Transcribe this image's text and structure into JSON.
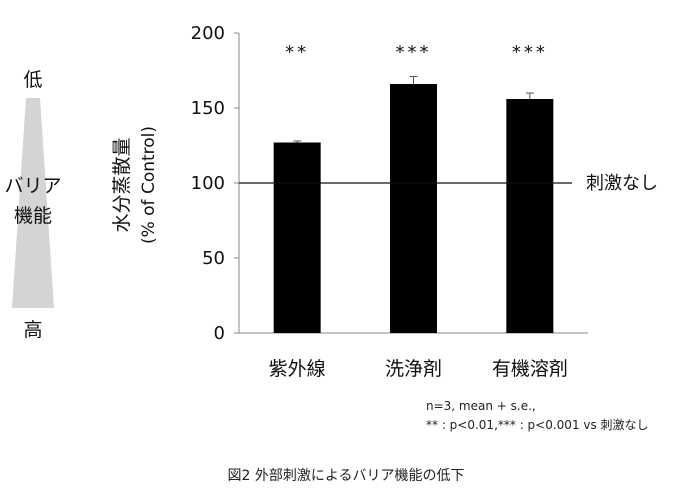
{
  "chart_data": {
    "type": "bar",
    "categories": [
      "紫外線",
      "洗浄剤",
      "有機溶剤"
    ],
    "series": [
      {
        "values": [
          127,
          166,
          156
        ],
        "errors": [
          1,
          5,
          4
        ],
        "significance": [
          "**",
          "***",
          "***"
        ]
      }
    ],
    "ylabel": "水分蒸散量",
    "ylabel_sub": "(% of Control)",
    "ylim": [
      0,
      200
    ],
    "yticks": [
      0,
      50,
      100,
      150,
      200
    ],
    "reference_line": {
      "value": 100,
      "label": "刺激なし"
    },
    "grid": false,
    "bar_color": "#000000",
    "side_indicator": {
      "top_label": "低",
      "middle_label_1": "バリア",
      "middle_label_2": "機能",
      "bottom_label": "高",
      "color": "#d4d4d4"
    },
    "notes": [
      "n=3, mean + s.e.,",
      "** : p<0.01,*** : p<0.001 vs 刺激なし"
    ],
    "caption": "図2 外部刺激によるバリア機能の低下"
  }
}
